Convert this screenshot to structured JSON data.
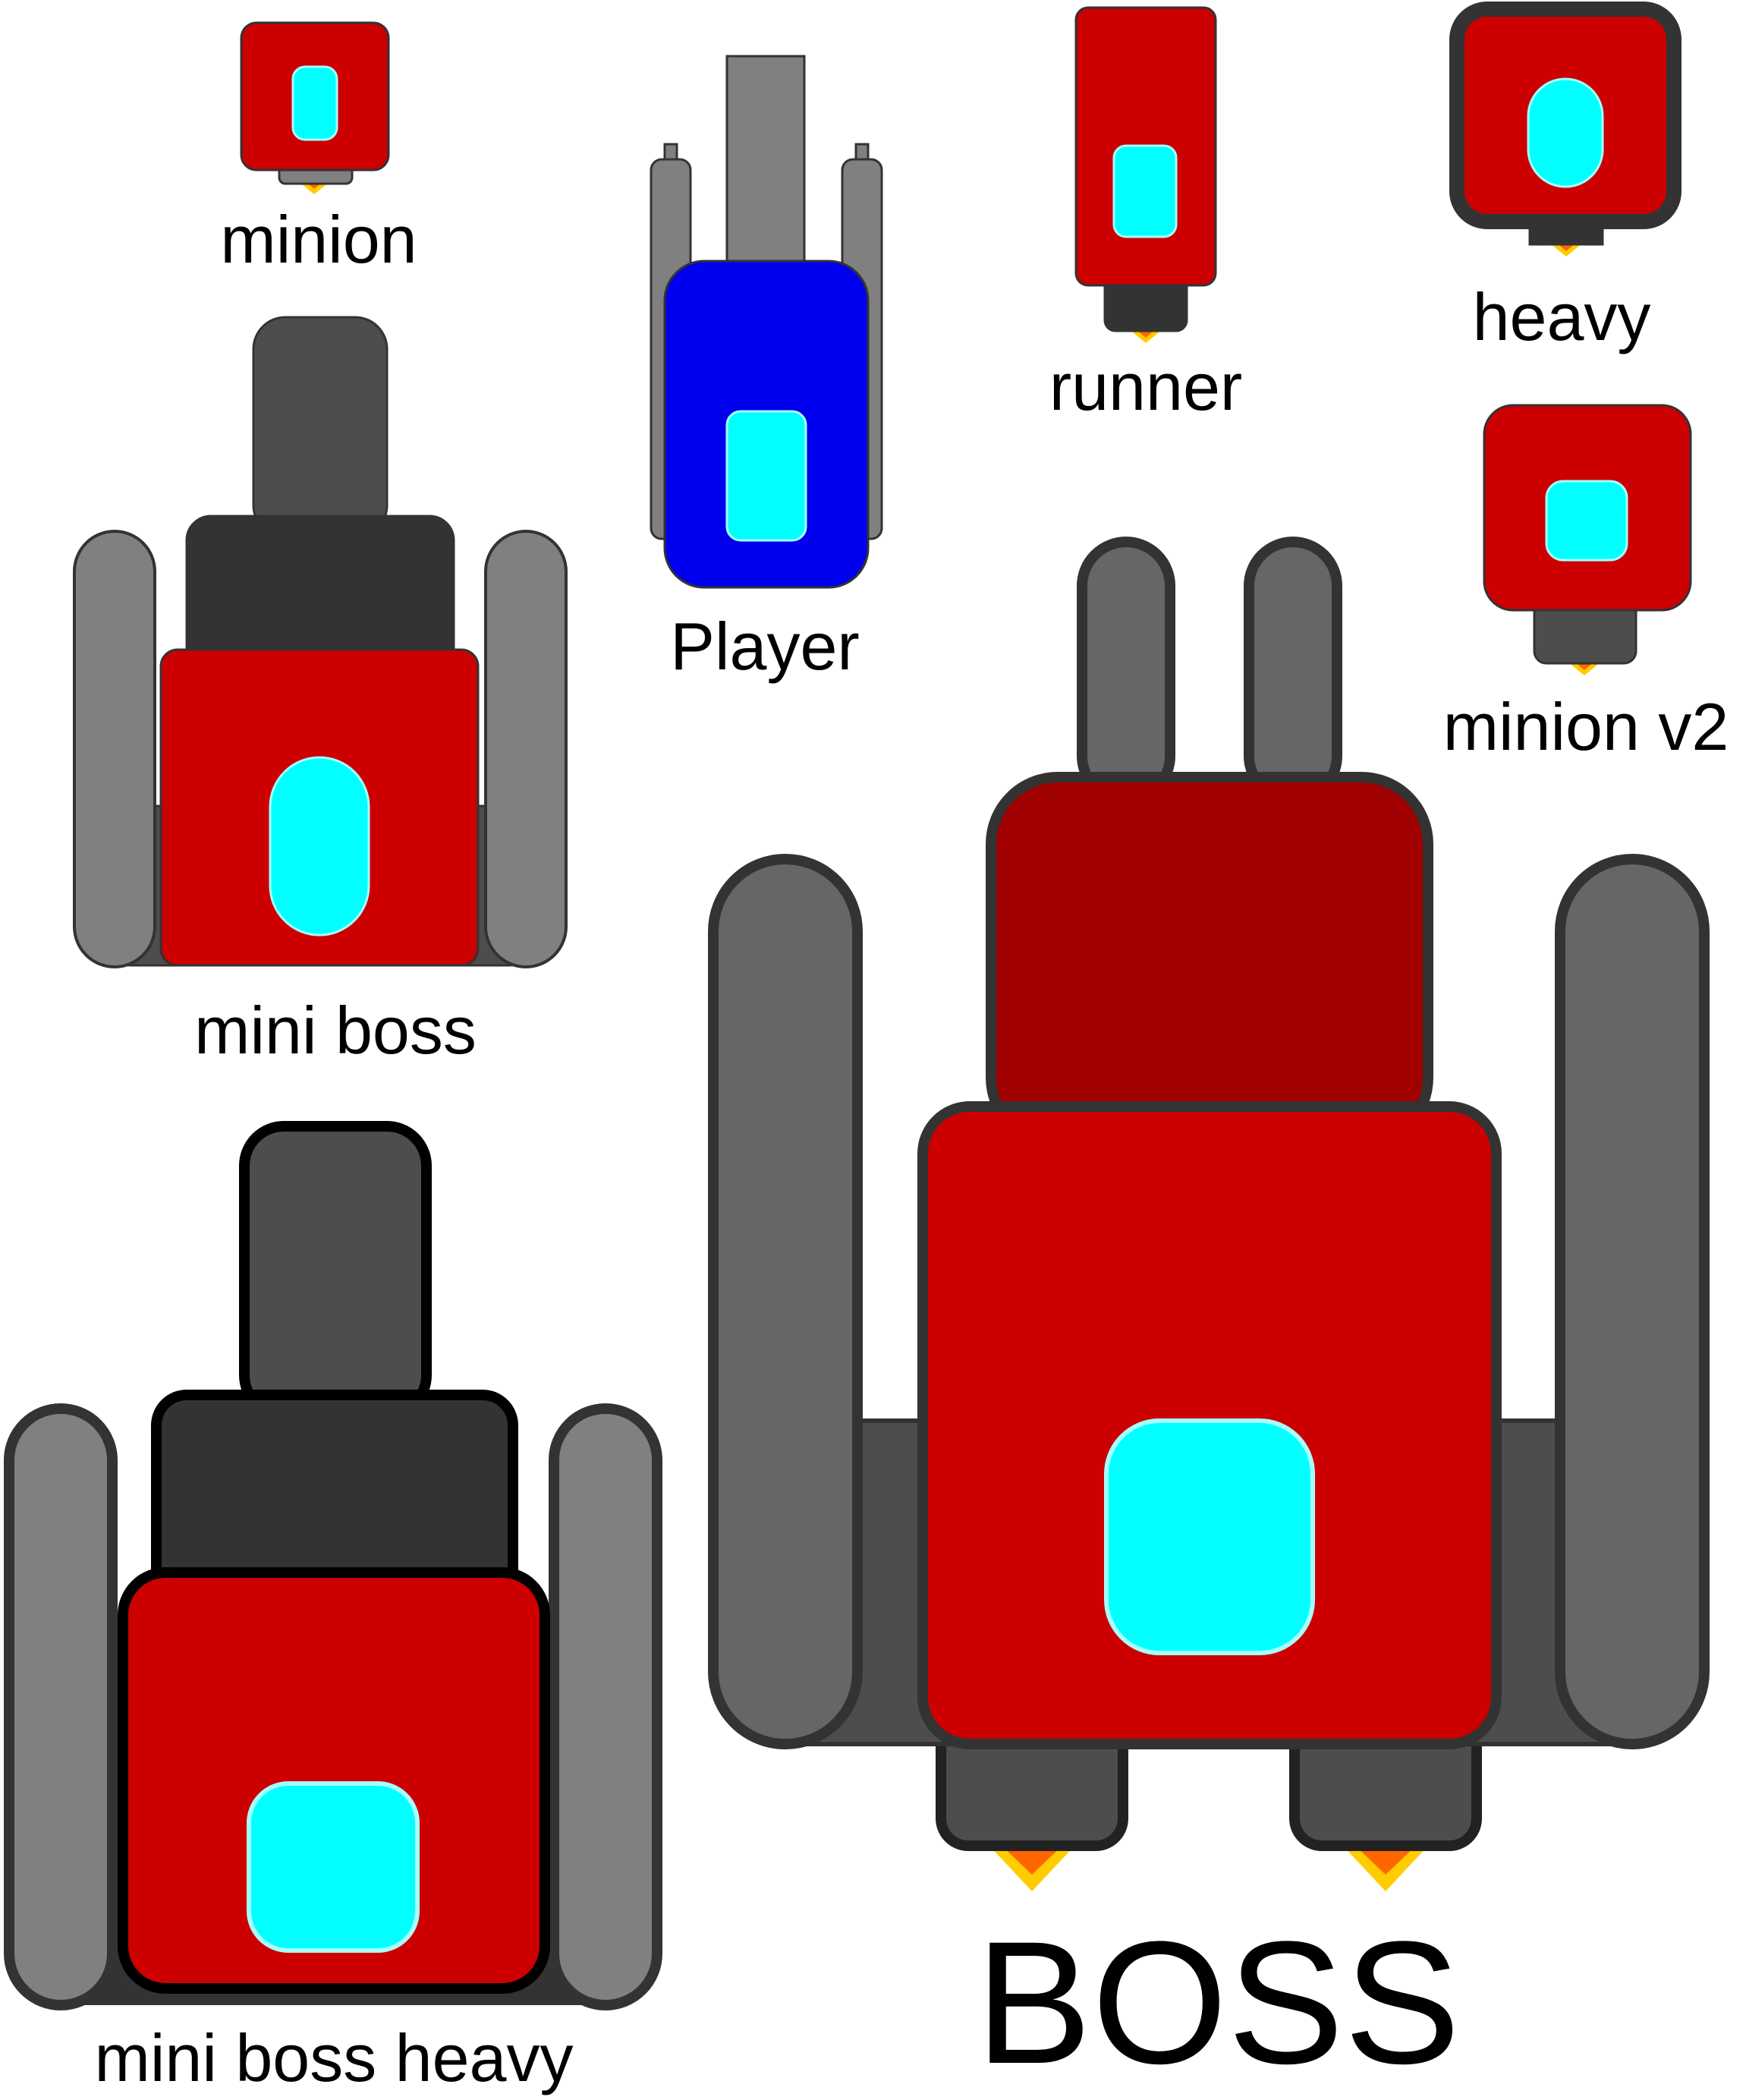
{
  "sprites": [
    {
      "id": "minion",
      "label": "minion"
    },
    {
      "id": "player",
      "label": "Player"
    },
    {
      "id": "runner",
      "label": "runner"
    },
    {
      "id": "heavy",
      "label": "heavy"
    },
    {
      "id": "minion-v2",
      "label": "minion v2"
    },
    {
      "id": "mini-boss",
      "label": "mini boss"
    },
    {
      "id": "mini-boss-heavy",
      "label": "mini boss heavy"
    },
    {
      "id": "boss",
      "label": "BOSS"
    }
  ],
  "colors": {
    "enemy_body": "#cc0000",
    "boss_rear_body": "#a00000",
    "player_body": "#0000ee",
    "cockpit": "#00ffff",
    "cockpit_glow": "#a6ffff",
    "track_light": "#808080",
    "track_mid": "#666666",
    "armor_dark": "#333333",
    "turret_gray": "#4d4d4d",
    "outline": "#333333",
    "flame_outer": "#ffcc00",
    "flame_inner": "#ff6600"
  }
}
